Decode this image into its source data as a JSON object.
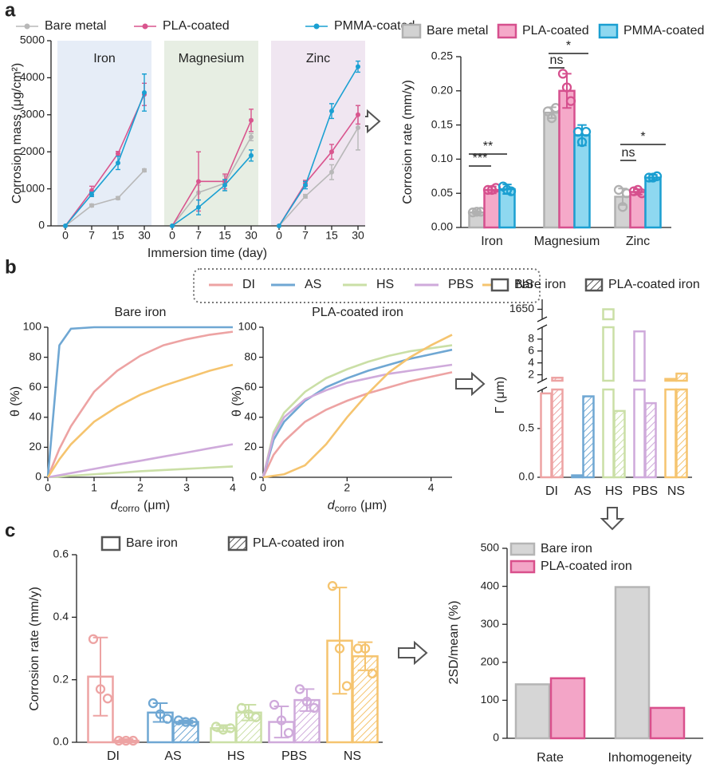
{
  "panel_labels": [
    "a",
    "b",
    "c"
  ],
  "chart_data": [
    {
      "type": "line",
      "y_label": "Corrosion mass (μg/cm²)",
      "x_label": "Immersion time (day)",
      "categories": [
        "0",
        "7",
        "15",
        "30"
      ],
      "ylim": [
        0,
        5000
      ],
      "yticks": [
        0,
        1000,
        2000,
        3000,
        4000,
        5000
      ],
      "series": [
        {
          "name": "Bare metal",
          "color": "#b8b8b8"
        },
        {
          "name": "PLA-coated",
          "color": "#d9558e"
        },
        {
          "name": "PMMA-coated",
          "color": "#1aa0d2"
        }
      ],
      "panels": [
        {
          "title": "Iron",
          "color": "#e6edf7",
          "values": [
            [
              0,
              550,
              750,
              1500
            ],
            [
              0,
              950,
              1950,
              3550
            ],
            [
              0,
              850,
              1700,
              3600
            ]
          ],
          "errors": [
            [
              0,
              40,
              40,
              40
            ],
            [
              0,
              120,
              60,
              300
            ],
            [
              0,
              60,
              180,
              500
            ]
          ]
        },
        {
          "title": "Magnesium",
          "color": "#e7eee3",
          "values": [
            [
              0,
              900,
              1150,
              2400
            ],
            [
              0,
              1200,
              1200,
              2850
            ],
            [
              0,
              500,
              1100,
              1900
            ]
          ],
          "errors": [
            [
              0,
              200,
              200,
              100
            ],
            [
              0,
              800,
              200,
              300
            ],
            [
              0,
              200,
              150,
              150
            ]
          ]
        },
        {
          "title": "Zinc",
          "color": "#f0e6f1",
          "values": [
            [
              0,
              800,
              1450,
              2650
            ],
            [
              0,
              1150,
              2000,
              3000
            ],
            [
              0,
              1100,
              3100,
              4300
            ]
          ],
          "errors": [
            [
              0,
              50,
              200,
              600
            ],
            [
              0,
              80,
              200,
              250
            ],
            [
              0,
              100,
              200,
              150
            ]
          ]
        }
      ]
    },
    {
      "type": "bar",
      "y_label": "Corrosion rate (mm/y)",
      "categories": [
        "Iron",
        "Magnesium",
        "Zinc"
      ],
      "ylim": [
        0,
        0.25
      ],
      "yticks": [
        {
          "value": 0,
          "label": "0.00"
        },
        0.05,
        {
          "value": 0.1,
          "label": "0.10"
        },
        0.15,
        {
          "value": 0.2,
          "label": "0.20"
        },
        0.25
      ],
      "series": [
        {
          "name": "Bare metal",
          "color": "#b0b0b0",
          "fill": "#d2d2d2",
          "values": [
            0.022,
            0.168,
            0.045
          ],
          "errors": [
            0.002,
            0.008,
            0.012
          ],
          "points": [
            [
              0.022,
              0.023,
              0.023
            ],
            [
              0.17,
              0.16,
              0.175
            ],
            [
              0.055,
              0.03,
              0.05
            ]
          ]
        },
        {
          "name": "PLA-coated",
          "color": "#d6508e",
          "fill": "#f5a9c9",
          "values": [
            0.055,
            0.2,
            0.052
          ],
          "errors": [
            0.005,
            0.025,
            0.004
          ],
          "points": [
            [
              0.055,
              0.055,
              0.058
            ],
            [
              0.225,
              0.205,
              0.185
            ],
            [
              0.053,
              0.055,
              0.05
            ]
          ]
        },
        {
          "name": "PMMA-coated",
          "color": "#1b9fd1",
          "fill": "#8ed8f0",
          "values": [
            0.056,
            0.135,
            0.073
          ],
          "errors": [
            0.007,
            0.015,
            0.004
          ],
          "points": [
            [
              0.06,
              0.055,
              0.053
            ],
            [
              0.14,
              0.125,
              0.14
            ],
            [
              0.073,
              0.073,
              0.075
            ]
          ]
        }
      ],
      "annotations": [
        "**",
        "***",
        "ns",
        "*",
        "ns",
        "*"
      ]
    },
    {
      "type": "line",
      "y_label": "θ (%)",
      "x_label": [
        "d",
        "corro",
        "(μm)"
      ],
      "ylim": [
        0,
        100
      ],
      "yticks": [
        0,
        20,
        40,
        60,
        80,
        100
      ],
      "series": [
        {
          "name": "DI",
          "color": "#eda3a3"
        },
        {
          "name": "AS",
          "color": "#6fa7d3"
        },
        {
          "name": "HS",
          "color": "#cadfa6"
        },
        {
          "name": "PBS",
          "color": "#cfaadb"
        },
        {
          "name": "NS",
          "color": "#f5c46f"
        }
      ],
      "panels": [
        {
          "title": "Bare iron",
          "xlim": [
            0,
            4
          ],
          "xticks": [
            0,
            1,
            2,
            3,
            4
          ],
          "x": [
            0,
            0.25,
            0.5,
            1,
            1.5,
            2,
            2.5,
            3,
            3.5,
            4
          ],
          "values": [
            [
              0,
              19,
              34,
              57,
              71,
              81,
              88,
              92,
              95,
              97
            ],
            [
              0,
              88,
              99,
              100,
              100,
              100,
              100,
              100,
              100,
              100
            ],
            [
              0,
              0.5,
              1,
              2,
              3,
              4,
              4.8,
              5.6,
              6.4,
              7.2
            ],
            [
              0,
              1.4,
              2.8,
              5.6,
              8.4,
              11,
              13.8,
              16.5,
              19.3,
              22
            ],
            [
              0,
              12,
              22,
              37,
              47,
              55,
              61,
              66,
              71,
              75
            ]
          ]
        },
        {
          "title": "PLA-coated iron",
          "xlim": [
            0,
            4.5
          ],
          "xticks": [
            0,
            2,
            4
          ],
          "x": [
            0,
            0.25,
            0.5,
            1,
            1.5,
            2,
            2.5,
            3,
            3.5,
            4,
            4.5
          ],
          "values": [
            [
              0,
              15,
              24,
              37,
              45,
              51,
              56,
              60,
              64,
              67,
              70
            ],
            [
              0,
              25,
              37,
              51,
              60,
              66,
              71,
              75,
              79,
              82,
              85
            ],
            [
              0,
              30,
              43,
              57,
              66,
              72,
              77,
              81,
              84,
              86,
              88
            ],
            [
              0,
              28,
              40,
              52,
              58,
              63,
              66,
              69,
              71,
              73,
              75
            ],
            [
              0,
              1,
              2,
              8,
              22,
              40,
              56,
              70,
              80,
              88,
              95
            ]
          ]
        }
      ]
    },
    {
      "type": "bar",
      "y_label": "Γ (μm)",
      "categories": [
        "DI",
        "AS",
        "HS",
        "PBS",
        "NS"
      ],
      "category_colors": [
        "#eda3a3",
        "#6fa7d3",
        "#cadfa6",
        "#cfaadb",
        "#f5c46f"
      ],
      "series": [
        {
          "name": "Bare iron",
          "style": "open",
          "values": [
            0.86,
            0.02,
            1650,
            9.3,
            1.3
          ]
        },
        {
          "name": "PLA-coated iron",
          "style": "hatched",
          "values": [
            1.5,
            0.83,
            0.68,
            0.76,
            2.2
          ]
        }
      ],
      "y_segments": [
        {
          "ylim": [
            0,
            0.9
          ],
          "yticks": [
            {
              "value": 0,
              "label": "0.0"
            },
            0.5
          ]
        },
        {
          "ylim": [
            1,
            10
          ],
          "yticks": [
            2,
            4,
            6,
            8
          ]
        },
        {
          "ylim": [
            1640,
            1660
          ],
          "yticks": [
            1650
          ]
        }
      ]
    },
    {
      "type": "bar",
      "y_label": "Corrosion rate (mm/y)",
      "categories": [
        "DI",
        "AS",
        "HS",
        "PBS",
        "NS"
      ],
      "category_colors": [
        "#eda3a3",
        "#6fa7d3",
        "#cadfa6",
        "#cfaadb",
        "#f5c46f"
      ],
      "ylim": [
        0,
        0.6
      ],
      "yticks": [
        {
          "value": 0,
          "label": "0.0"
        },
        0.2,
        0.4,
        0.6
      ],
      "series": [
        {
          "name": "Bare iron",
          "style": "open",
          "values": [
            0.21,
            0.095,
            0.045,
            0.065,
            0.325
          ],
          "errors": [
            0.125,
            0.03,
            0.01,
            0.05,
            0.17
          ],
          "points": [
            [
              0.33,
              0.17,
              0.14
            ],
            [
              0.125,
              0.09,
              0.075
            ],
            [
              0.05,
              0.04,
              0.045
            ],
            [
              0.12,
              0.07,
              0.03
            ],
            [
              0.5,
              0.3,
              0.18
            ]
          ]
        },
        {
          "name": "PLA-coated iron",
          "style": "hatched",
          "values": [
            0.005,
            0.065,
            0.095,
            0.135,
            0.275
          ],
          "errors": [
            0.005,
            0.005,
            0.025,
            0.035,
            0.045
          ],
          "points": [
            [
              0.005,
              0.005,
              0.005
            ],
            [
              0.07,
              0.065,
              0.065
            ],
            [
              0.11,
              0.09,
              0.08
            ],
            [
              0.17,
              0.13,
              0.11
            ],
            [
              0.3,
              0.3,
              0.22
            ]
          ]
        }
      ]
    },
    {
      "type": "bar",
      "y_label": "2SD/mean (%)",
      "categories": [
        "Rate",
        "Inhomogeneity"
      ],
      "ylim": [
        0,
        500
      ],
      "yticks": [
        0,
        100,
        200,
        300,
        400,
        500
      ],
      "series": [
        {
          "name": "Bare iron",
          "color": "#b5b5b5",
          "fill": "#d6d6d6",
          "values": [
            142,
            398
          ]
        },
        {
          "name": "PLA-coated iron",
          "color": "#d9508c",
          "fill": "#f3a5c7",
          "values": [
            158,
            80
          ]
        }
      ]
    }
  ]
}
